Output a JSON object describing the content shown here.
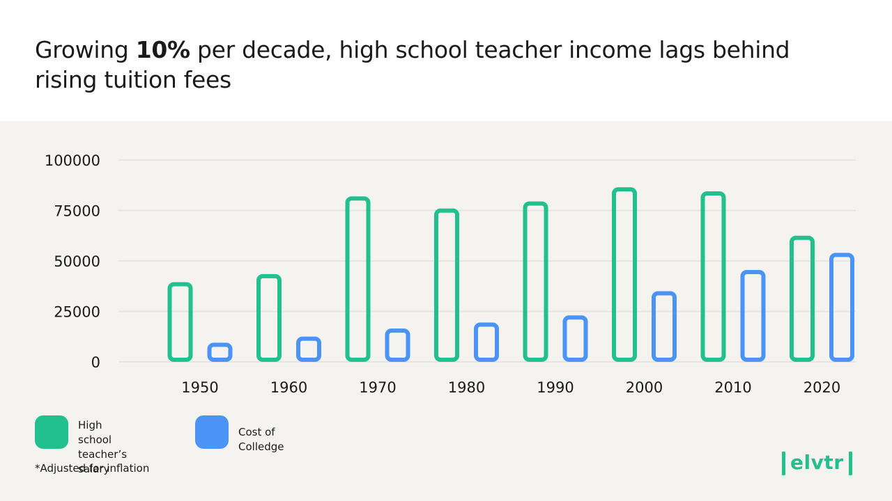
{
  "title": {
    "before": "Growing ",
    "bold": "10%",
    "after": " per decade, high school teacher income lags behind rising tuition fees"
  },
  "chart_data": {
    "type": "bar",
    "categories": [
      "1950",
      "1960",
      "1970",
      "1980",
      "1990",
      "2000",
      "2010",
      "2020"
    ],
    "series": [
      {
        "name": "High school teacher’s salary",
        "color": "#21c08e",
        "values": [
          39500,
          43500,
          82000,
          76000,
          79500,
          86500,
          84500,
          62500
        ]
      },
      {
        "name": "Cost of Colledge",
        "color": "#4b94f5",
        "values": [
          9500,
          12500,
          16500,
          19500,
          23000,
          35000,
          45500,
          54000
        ]
      }
    ],
    "y_ticks": [
      "100000",
      "75000",
      "50000",
      "25000",
      "0"
    ],
    "ylim": [
      0,
      100000
    ],
    "grid": true,
    "legend_position": "bottom-left"
  },
  "legend": {
    "teacher_line1": "High school",
    "teacher_line2": "teacher’s salary",
    "college": "Cost of Colledge"
  },
  "footnote": "*Adjusted for inflation",
  "logo": "elvtr",
  "colors": {
    "teacher": "#21c08e",
    "college": "#4b94f5",
    "background": "#f4f3ef",
    "grid": "#e6e5e1"
  }
}
